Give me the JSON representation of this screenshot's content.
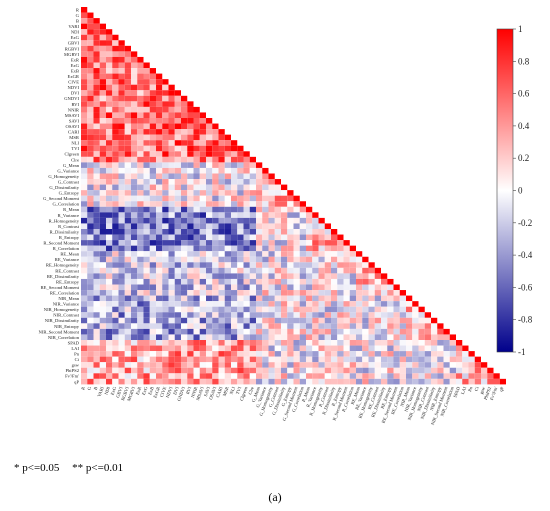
{
  "chart_data": {
    "type": "heatmap",
    "layout": "lower-triangle",
    "variables": [
      "R",
      "G",
      "B",
      "VARI",
      "NDI",
      "ExG",
      "GBVI",
      "RGBVI",
      "MGRVI",
      "ExR",
      "ExG",
      "ExB",
      "ExGR",
      "CIVE",
      "NDVI",
      "DVI",
      "GNDVI",
      "RVI",
      "NNIR",
      "MSAVI",
      "SAVI",
      "OSAVI",
      "CARI",
      "MSR",
      "NLI",
      "TVI",
      "Clgreen",
      "Clre",
      "G_Mean",
      "G_Variance",
      "G_Homogeneity",
      "G_Contrast",
      "G_Dissimilarity",
      "G_Entropy",
      "G_Second Moment",
      "G_Correlation",
      "R_Mean",
      "R_Variance",
      "R_Homogeneity",
      "R_Contrast",
      "R_Dissimilarity",
      "R_Entropy",
      "R_Second Moment",
      "R_Correlation",
      "RE_Mean",
      "RE_Variance",
      "RE_Homogeneity",
      "RE_Contrast",
      "RE_Dissimilarity",
      "RE_Entropy",
      "RE_Second Moment",
      "RE_Correlation",
      "NIR_Mean",
      "NIR_Variance",
      "NIR_Homogeneity",
      "NIR_Contrast",
      "NIR_Dissimilarity",
      "NIR_Entropy",
      "NIR_Second Moment",
      "NIR_Correlation",
      "SPAD",
      "LAI",
      "Pn",
      "Ci",
      "gsw",
      "PhiPS2",
      "Fv'/Fm'",
      "qP"
    ],
    "colorbar": {
      "min": -1,
      "max": 1,
      "ticks": [
        "1",
        "0.8",
        "0.6",
        "0.4",
        "0.2",
        "0",
        "-0.2",
        "-0.4",
        "-0.6",
        "-0.8",
        "-1"
      ]
    },
    "colormap": [
      "#00008b",
      "#ffffff",
      "#ff0000"
    ]
  },
  "footnote": {
    "sig1": "* p<=0.05",
    "sig2": "** p<=0.01"
  },
  "panel_label": "(a)"
}
